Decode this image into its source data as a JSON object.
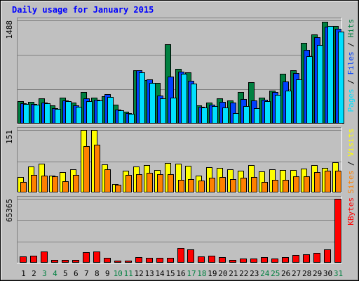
{
  "chart_data": {
    "type": "bar",
    "title": "Daily usage for January 2015",
    "categories": [
      "1",
      "2",
      "3",
      "4",
      "5",
      "6",
      "7",
      "8",
      "9",
      "10",
      "11",
      "12",
      "13",
      "14",
      "15",
      "16",
      "17",
      "18",
      "19",
      "20",
      "21",
      "22",
      "23",
      "24",
      "25",
      "26",
      "27",
      "28",
      "29",
      "30",
      "31"
    ],
    "weekend_days": [
      "3",
      "4",
      "10",
      "11",
      "17",
      "18",
      "24",
      "25",
      "31"
    ],
    "colors": {
      "title": "#0000ff",
      "background": "#c0c0c0",
      "grid": "#808080",
      "hits": "#008040",
      "files": "#0040ff",
      "pages": "#00e0ff",
      "visits": "#ffff00",
      "sites": "#ff8000",
      "kbytes": "#ff0000",
      "weekday_label": "#000000",
      "weekend_label": "#008040"
    },
    "panels": [
      {
        "id": "hits-files-pages",
        "ymax_label": "1488",
        "ylim": [
          0,
          1488
        ],
        "legend": [
          {
            "text": "Pages",
            "color": "#00e0ff"
          },
          {
            "text": " / ",
            "color": "#000000"
          },
          {
            "text": "Files",
            "color": "#0040ff"
          },
          {
            "text": " / ",
            "color": "#000000"
          },
          {
            "text": "Hits",
            "color": "#008040"
          }
        ],
        "series": [
          {
            "name": "Hits",
            "color": "#008040",
            "values": [
              320,
              310,
              360,
              260,
              370,
              300,
              460,
              370,
              390,
              270,
              170,
              770,
              630,
              590,
              1140,
              790,
              740,
              260,
              300,
              360,
              330,
              460,
              600,
              370,
              480,
              720,
              770,
              1160,
              1290,
              1470,
              1410
            ]
          },
          {
            "name": "Files",
            "color": "#0040ff",
            "values": [
              290,
              280,
              300,
              220,
              330,
              260,
              360,
              340,
              430,
              200,
              150,
              770,
              640,
              400,
              680,
              750,
              620,
              240,
              270,
              310,
              300,
              350,
              330,
              340,
              460,
              610,
              730,
              1060,
              1240,
              1400,
              1370
            ]
          },
          {
            "name": "Pages",
            "color": "#00e0ff",
            "values": [
              280,
              270,
              290,
              210,
              320,
              240,
              320,
              330,
              380,
              190,
              140,
              740,
              590,
              360,
              370,
              720,
              580,
              230,
              250,
              230,
              150,
              250,
              220,
              320,
              420,
              480,
              640,
              970,
              1130,
              1410,
              1330
            ]
          }
        ]
      },
      {
        "id": "visits-sites",
        "ymax_label": "151",
        "ylim": [
          0,
          151
        ],
        "legend": [
          {
            "text": "Sites",
            "color": "#ff8000"
          },
          {
            "text": " / ",
            "color": "#000000"
          },
          {
            "text": "Visits",
            "color": "#ffff00"
          }
        ],
        "series": [
          {
            "name": "Visits",
            "color": "#ffff00",
            "values": [
              37,
              62,
              69,
              40,
              50,
              56,
              151,
              151,
              68,
              20,
              53,
              62,
              66,
              54,
              72,
              70,
              64,
              40,
              61,
              60,
              56,
              53,
              66,
              51,
              56,
              54,
              54,
              58,
              66,
              60,
              73
            ]
          },
          {
            "name": "Sites",
            "color": "#ff8000",
            "values": [
              25,
              43,
              40,
              39,
              27,
              42,
              112,
              115,
              56,
              18,
              42,
              44,
              47,
              44,
              44,
              30,
              33,
              28,
              35,
              37,
              33,
              35,
              37,
              26,
              31,
              31,
              39,
              39,
              50,
              52,
              53
            ]
          }
        ]
      },
      {
        "id": "kbytes",
        "ymax_label": "65365",
        "ylim": [
          0,
          65365
        ],
        "legend": [
          {
            "text": "KBytes",
            "color": "#ff0000"
          }
        ],
        "series": [
          {
            "name": "KBytes",
            "color": "#ff0000",
            "values": [
              6300,
              7100,
              11600,
              2900,
              2800,
              3200,
              10700,
              11600,
              5300,
              2400,
              2100,
              5500,
              5200,
              5000,
              5300,
              15000,
              13800,
              6600,
              6900,
              5600,
              2800,
              4300,
              4100,
              6100,
              4300,
              5600,
              8000,
              8500,
              9900,
              13500,
              65365
            ]
          }
        ]
      }
    ]
  }
}
